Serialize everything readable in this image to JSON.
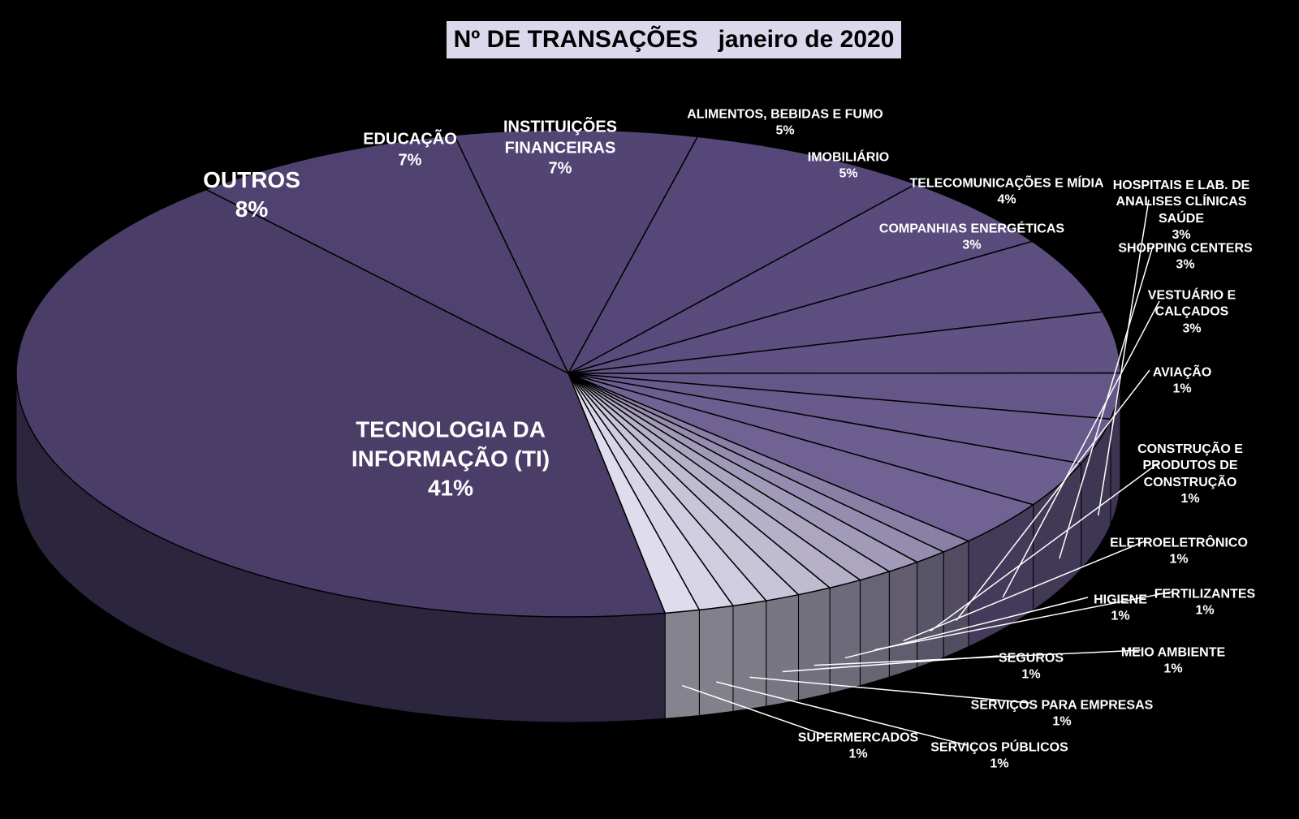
{
  "chart_data": {
    "type": "pie",
    "title": "Nº DE TRANSAÇÕES   janeiro de 2020",
    "categories": [
      "OUTROS",
      "EDUCAÇÃO",
      "INSTITUIÇÕES FINANCEIRAS",
      "ALIMENTOS, BEBIDAS E FUMO",
      "IMOBILIÁRIO",
      "TELECOMUNICAÇÕES E MÍDIA",
      "COMPANHIAS ENERGÉTICAS",
      "HOSPITAIS E LAB. DE ANALISES CLÍNICAS SAÚDE",
      "SHOPPING CENTERS",
      "VESTUÁRIO E CALÇADOS",
      "AVIAÇÃO",
      "CONSTRUÇÃO E PRODUTOS DE CONSTRUÇÃO",
      "ELETROELETRÔNICO",
      "FERTILIZANTES",
      "HIGIENE",
      "MEIO AMBIENTE",
      "SEGUROS",
      "SERVIÇOS PARA EMPRESAS",
      "SERVIÇOS PÚBLICOS",
      "SUPERMERCADOS",
      "TECNOLOGIA DA INFORMAÇÃO (TI)"
    ],
    "values": [
      8,
      7,
      7,
      5,
      5,
      4,
      3,
      3,
      3,
      3,
      1,
      1,
      1,
      1,
      1,
      1,
      1,
      1,
      1,
      1,
      41
    ],
    "value_labels": [
      "8%",
      "7%",
      "7%",
      "5%",
      "5%",
      "4%",
      "3%",
      "3%",
      "3%",
      "3%",
      "1%",
      "1%",
      "1%",
      "1%",
      "1%",
      "1%",
      "1%",
      "1%",
      "1%",
      "1%",
      "41%"
    ],
    "colors": [
      "#4f4270",
      "#524574",
      "#554878",
      "#594c7c",
      "#5c4f80",
      "#605384",
      "#645788",
      "#685b8c",
      "#6c5f90",
      "#706394",
      "#8a80a6",
      "#958daf",
      "#a19ab8",
      "#aca6c1",
      "#b6b1c9",
      "#bfbbd1",
      "#c8c5d8",
      "#d0cde0",
      "#d8d6e6",
      "#dedced",
      "#4a3d68"
    ]
  }
}
